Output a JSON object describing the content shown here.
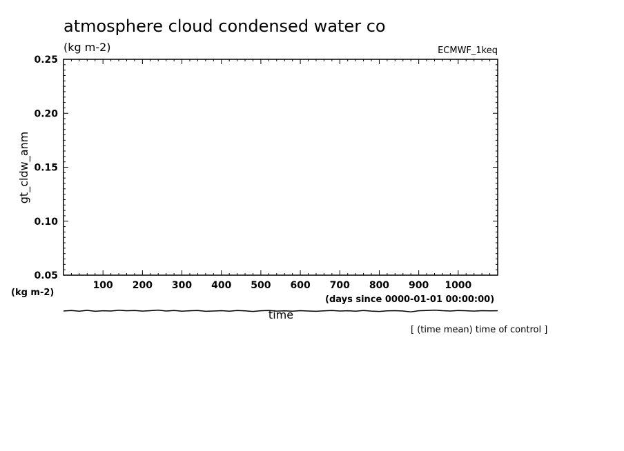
{
  "chart_data": {
    "type": "line",
    "title": "atmosphere cloud condensed water co",
    "units": "(kg m-2)",
    "experiment": "ECMWF_1keq",
    "xlabel": "time",
    "xunits": "(days since 0000-01-01 00:00:00)",
    "ylabel": "gt_cldw_anm",
    "yunits": "(kg m-2)",
    "xlim": [
      0,
      1100
    ],
    "ylim": [
      0.05,
      0.25
    ],
    "x_ticks": [
      100,
      200,
      300,
      400,
      500,
      600,
      700,
      800,
      900,
      1000
    ],
    "y_ticks": [
      "0.05",
      "0.10",
      "0.15",
      "0.20",
      "0.25"
    ],
    "annotation": "[ (time mean) time of control ]",
    "series": [
      {
        "x": [
          0,
          20,
          40,
          60,
          80,
          100,
          120,
          140,
          160,
          180,
          200,
          220,
          240,
          260,
          280,
          300,
          320,
          340,
          360,
          380,
          400,
          420,
          440,
          460,
          480,
          500,
          520,
          540,
          560,
          580,
          600,
          620,
          640,
          660,
          680,
          700,
          720,
          740,
          760,
          780,
          800,
          820,
          840,
          860,
          880,
          900,
          920,
          940,
          960,
          980,
          1000,
          1020,
          1040,
          1060,
          1080,
          1100
        ],
        "y": [
          0.0168,
          0.0172,
          0.0166,
          0.0174,
          0.0165,
          0.017,
          0.0168,
          0.0175,
          0.017,
          0.0172,
          0.0167,
          0.0171,
          0.0176,
          0.0168,
          0.0173,
          0.0166,
          0.017,
          0.0172,
          0.0165,
          0.0168,
          0.0171,
          0.0166,
          0.0173,
          0.0169,
          0.0164,
          0.017,
          0.0172,
          0.0167,
          0.0169,
          0.0166,
          0.0171,
          0.0168,
          0.0165,
          0.0169,
          0.0172,
          0.0168,
          0.017,
          0.0166,
          0.0173,
          0.0167,
          0.0164,
          0.0169,
          0.0171,
          0.0168,
          0.016,
          0.017,
          0.0173,
          0.0176,
          0.0171,
          0.0168,
          0.0172,
          0.017,
          0.0167,
          0.0171,
          0.0169,
          0.017
        ]
      }
    ]
  }
}
